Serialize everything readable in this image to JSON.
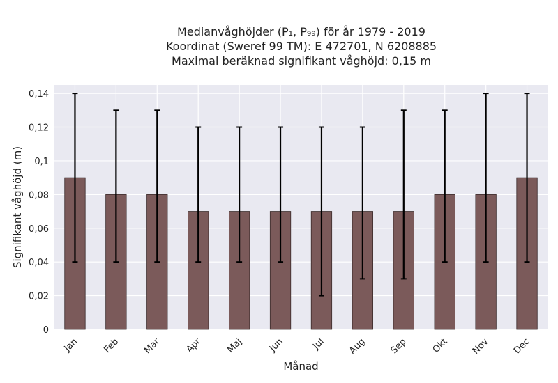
{
  "chart_data": {
    "type": "bar",
    "title_lines": [
      "Medianvåghöjder (P₁, P₉₉) för år 1979 - 2019",
      "Koordinat (Sweref 99 TM): E 472701, N 6208885",
      "Maximal beräknad signifikant våghöjd: 0,15 m"
    ],
    "xlabel": "Månad",
    "ylabel": "Signifikant våghöjd (m)",
    "categories": [
      "Jan",
      "Feb",
      "Mar",
      "Apr",
      "Maj",
      "Jun",
      "Jul",
      "Aug",
      "Sep",
      "Okt",
      "Nov",
      "Dec"
    ],
    "values": [
      0.09,
      0.08,
      0.08,
      0.07,
      0.07,
      0.07,
      0.07,
      0.07,
      0.07,
      0.08,
      0.08,
      0.09
    ],
    "error_low": [
      0.04,
      0.04,
      0.04,
      0.04,
      0.04,
      0.04,
      0.02,
      0.03,
      0.03,
      0.04,
      0.04,
      0.04
    ],
    "error_high": [
      0.14,
      0.13,
      0.13,
      0.12,
      0.12,
      0.12,
      0.12,
      0.12,
      0.13,
      0.13,
      0.14,
      0.14
    ],
    "ylim": [
      0,
      0.145
    ],
    "yticks": [
      0,
      0.02,
      0.04,
      0.06,
      0.08,
      0.1,
      0.12,
      0.14
    ],
    "ytick_labels": [
      "0",
      "0,02",
      "0,04",
      "0,06",
      "0,08",
      "0,1",
      "0,12",
      "0,14"
    ],
    "grid": true,
    "colors": {
      "bar": "#7b5a5a",
      "bar_edge": "#3a2a2a",
      "error": "#000000",
      "plot_bg": "#e9e9f1",
      "grid": "#ffffff"
    }
  }
}
